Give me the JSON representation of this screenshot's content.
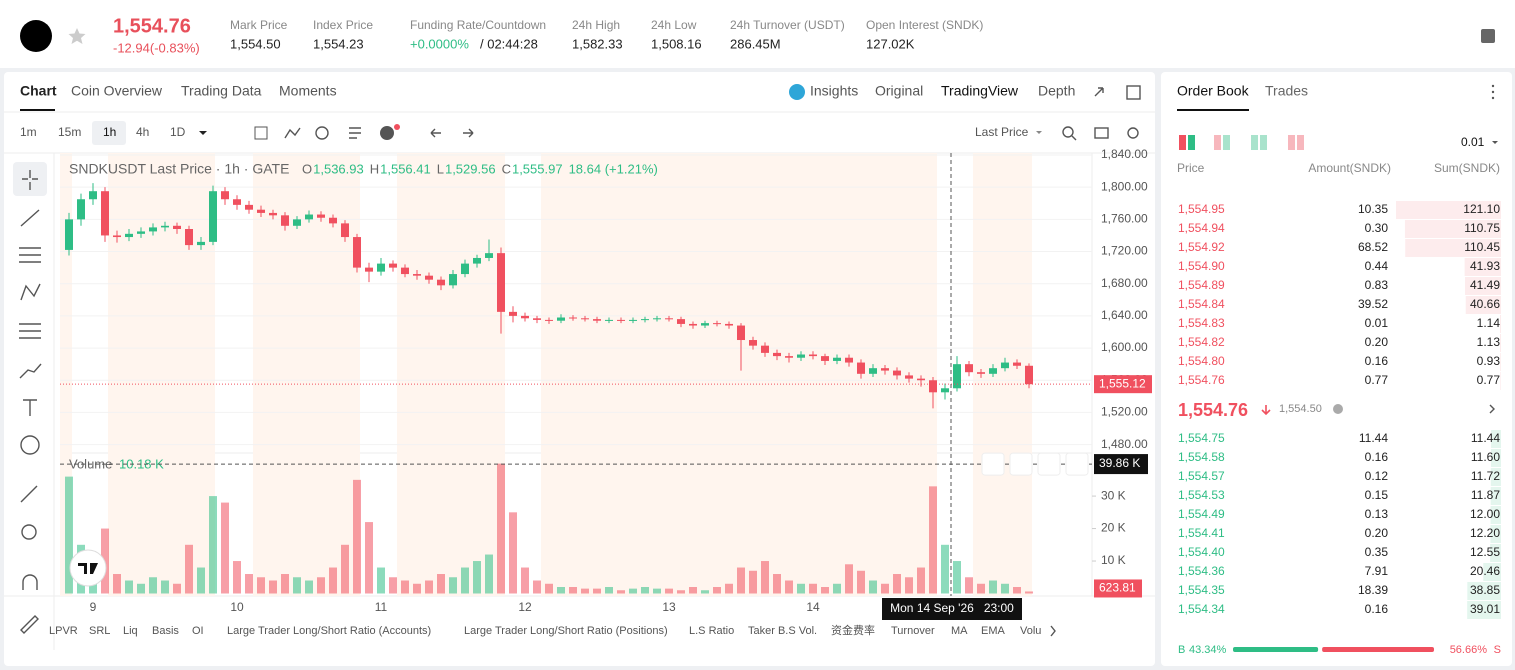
{
  "header": {
    "price": "1,554.76",
    "change": "-12.94(-0.83%)",
    "stats": [
      {
        "label": "Mark Price",
        "value": "1,554.50"
      },
      {
        "label": "Index Price",
        "value": "1,554.23"
      },
      {
        "label": "Funding Rate/Countdown",
        "value": "+0.0000%",
        "countdown": "/ 02:44:28"
      },
      {
        "label": "24h High",
        "value": "1,582.33"
      },
      {
        "label": "24h Low",
        "value": "1,508.16"
      },
      {
        "label": "24h Turnover (USDT)",
        "value": "286.45M"
      },
      {
        "label": "Open Interest (SNDK)",
        "value": "127.02K"
      }
    ]
  },
  "tabs": [
    "Chart",
    "Coin Overview",
    "Trading Data",
    "Moments"
  ],
  "views": [
    "Insights",
    "Original",
    "TradingView",
    "Depth"
  ],
  "intervals": [
    "1m",
    "15m",
    "1h",
    "4h",
    "1D"
  ],
  "price_source": "Last Price",
  "chart_data": {
    "type": "candlestick",
    "legend": {
      "title": "SNDKUSDT Last Price · 1h · GATE",
      "items": [
        {
          "key": "O",
          "value": "1,536.93"
        },
        {
          "key": "H",
          "value": "1,556.41"
        },
        {
          "key": "L",
          "value": "1,529.56"
        },
        {
          "key": "C",
          "value": "1,555.97"
        }
      ],
      "change": "18.64 (+1.21%)"
    },
    "up_color": "#2ebd85",
    "down_color": "#f0505f",
    "categories": [
      null,
      null,
      "9",
      null,
      null,
      null,
      null,
      null,
      null,
      null,
      null,
      null,
      null,
      null,
      "10",
      null,
      null,
      null,
      null,
      null,
      null,
      null,
      null,
      null,
      null,
      null,
      "11",
      null,
      null,
      null,
      null,
      null,
      null,
      null,
      null,
      null,
      null,
      null,
      "12",
      null,
      null,
      null,
      null,
      null,
      null,
      null,
      null,
      null,
      null,
      null,
      "13",
      null,
      null,
      null,
      null,
      null,
      null,
      null,
      null,
      null,
      null,
      null,
      "14",
      null,
      null,
      null,
      null,
      null,
      null,
      null,
      null,
      null,
      null,
      null,
      null,
      null,
      null,
      null,
      null,
      null,
      null
    ],
    "candles": [
      [
        1722,
        1768,
        1715,
        1760
      ],
      [
        1760,
        1792,
        1752,
        1785
      ],
      [
        1785,
        1805,
        1778,
        1795
      ],
      [
        1795,
        1800,
        1732,
        1740
      ],
      [
        1740,
        1746,
        1731,
        1738
      ],
      [
        1738,
        1748,
        1733,
        1742
      ],
      [
        1742,
        1750,
        1737,
        1745
      ],
      [
        1745,
        1755,
        1740,
        1750
      ],
      [
        1750,
        1757,
        1745,
        1752
      ],
      [
        1752,
        1756,
        1742,
        1748
      ],
      [
        1748,
        1752,
        1722,
        1728
      ],
      [
        1728,
        1738,
        1722,
        1732
      ],
      [
        1732,
        1802,
        1728,
        1795
      ],
      [
        1795,
        1800,
        1778,
        1785
      ],
      [
        1785,
        1790,
        1772,
        1778
      ],
      [
        1778,
        1783,
        1767,
        1772
      ],
      [
        1772,
        1777,
        1763,
        1768
      ],
      [
        1768,
        1772,
        1760,
        1765
      ],
      [
        1765,
        1769,
        1746,
        1752
      ],
      [
        1752,
        1764,
        1748,
        1760
      ],
      [
        1760,
        1771,
        1756,
        1766
      ],
      [
        1766,
        1770,
        1757,
        1762
      ],
      [
        1762,
        1766,
        1750,
        1755
      ],
      [
        1755,
        1759,
        1732,
        1738
      ],
      [
        1738,
        1742,
        1694,
        1700
      ],
      [
        1700,
        1706,
        1682,
        1695
      ],
      [
        1695,
        1712,
        1690,
        1705
      ],
      [
        1705,
        1709,
        1695,
        1700
      ],
      [
        1700,
        1704,
        1688,
        1692
      ],
      [
        1692,
        1697,
        1685,
        1690
      ],
      [
        1690,
        1694,
        1680,
        1685
      ],
      [
        1685,
        1689,
        1672,
        1678
      ],
      [
        1678,
        1697,
        1674,
        1692
      ],
      [
        1692,
        1710,
        1688,
        1705
      ],
      [
        1705,
        1716,
        1700,
        1712
      ],
      [
        1712,
        1735,
        1708,
        1718
      ],
      [
        1718,
        1725,
        1618,
        1645
      ],
      [
        1645,
        1652,
        1632,
        1640
      ],
      [
        1640,
        1644,
        1633,
        1637
      ],
      [
        1637,
        1640,
        1631,
        1635
      ],
      [
        1635,
        1638,
        1630,
        1634
      ],
      [
        1634,
        1642,
        1631,
        1638
      ],
      [
        1638,
        1641,
        1634,
        1637
      ],
      [
        1637,
        1640,
        1633,
        1636
      ],
      [
        1636,
        1639,
        1631,
        1634
      ],
      [
        1634,
        1638,
        1631,
        1635
      ],
      [
        1635,
        1638,
        1631,
        1634
      ],
      [
        1634,
        1638,
        1631,
        1635
      ],
      [
        1635,
        1639,
        1632,
        1636
      ],
      [
        1636,
        1640,
        1633,
        1637
      ],
      [
        1637,
        1640,
        1633,
        1636
      ],
      [
        1636,
        1639,
        1626,
        1630
      ],
      [
        1630,
        1633,
        1624,
        1628
      ],
      [
        1628,
        1634,
        1625,
        1631
      ],
      [
        1631,
        1634,
        1627,
        1630
      ],
      [
        1630,
        1633,
        1624,
        1628
      ],
      [
        1628,
        1631,
        1572,
        1610
      ],
      [
        1610,
        1614,
        1598,
        1603
      ],
      [
        1603,
        1607,
        1589,
        1594
      ],
      [
        1594,
        1598,
        1585,
        1590
      ],
      [
        1590,
        1594,
        1582,
        1588
      ],
      [
        1588,
        1596,
        1584,
        1592
      ],
      [
        1592,
        1596,
        1586,
        1590
      ],
      [
        1590,
        1593,
        1579,
        1584
      ],
      [
        1584,
        1592,
        1580,
        1588
      ],
      [
        1588,
        1592,
        1577,
        1582
      ],
      [
        1582,
        1586,
        1562,
        1568
      ],
      [
        1568,
        1580,
        1564,
        1575
      ],
      [
        1575,
        1579,
        1567,
        1572
      ],
      [
        1572,
        1576,
        1561,
        1566
      ],
      [
        1566,
        1570,
        1557,
        1562
      ],
      [
        1562,
        1566,
        1552,
        1560
      ],
      [
        1560,
        1564,
        1525,
        1545
      ],
      [
        1545,
        1556,
        1536,
        1550
      ],
      [
        1550,
        1590,
        1546,
        1580
      ],
      [
        1580,
        1584,
        1565,
        1570
      ],
      [
        1570,
        1574,
        1563,
        1568
      ],
      [
        1568,
        1580,
        1564,
        1575
      ],
      [
        1575,
        1588,
        1571,
        1582
      ],
      [
        1582,
        1586,
        1574,
        1578
      ],
      [
        1578,
        1581,
        1550,
        1555.12
      ]
    ],
    "ylim": [
      1480,
      1840
    ],
    "yticks": [
      {
        "value": 1480,
        "label": "1,480.00"
      },
      {
        "value": 1520,
        "label": "1,520.00"
      },
      {
        "value": 1560,
        "label": "1,560.00"
      },
      {
        "value": 1600,
        "label": "1,600.00"
      },
      {
        "value": 1640,
        "label": "1,640.00"
      },
      {
        "value": 1680,
        "label": "1,680.00"
      },
      {
        "value": 1720,
        "label": "1,720.00"
      },
      {
        "value": 1760,
        "label": "1,760.00"
      },
      {
        "value": 1800,
        "label": "1,800.00"
      },
      {
        "value": 1840,
        "label": "1,840.00"
      }
    ],
    "last_price": {
      "value": 1555.12,
      "label": "1,555.12"
    },
    "volume": {
      "label": "Volume",
      "current": "10.18 K",
      "values": [
        36000,
        15000,
        12000,
        20000,
        6000,
        4000,
        3000,
        5000,
        4000,
        3000,
        15000,
        8000,
        30000,
        28000,
        10000,
        6000,
        5000,
        4000,
        6000,
        5000,
        4000,
        5000,
        8000,
        15000,
        35000,
        22000,
        8000,
        5000,
        4000,
        3000,
        4000,
        6000,
        5000,
        8000,
        10000,
        12000,
        40000,
        25000,
        8000,
        4000,
        3000,
        2000,
        2000,
        1500,
        1500,
        2000,
        1000,
        1500,
        2000,
        1500,
        1500,
        1000,
        2000,
        1000,
        2000,
        3000,
        8000,
        7000,
        10000,
        6000,
        4000,
        3000,
        3000,
        2000,
        3000,
        9000,
        7000,
        4000,
        3000,
        6000,
        5000,
        8000,
        33000,
        15000,
        10000,
        5000,
        3000,
        4000,
        3000,
        2000,
        623.81
      ],
      "ylim": [
        0,
        40500
      ],
      "yticks": [
        {
          "value": 10000,
          "label": "10 K"
        },
        {
          "value": 20000,
          "label": "20 K"
        },
        {
          "value": 30000,
          "label": "30 K"
        }
      ]
    },
    "crosshair": {
      "volume": {
        "value": 39860,
        "label": "39.86 K"
      },
      "time": "Mon 14 Sep '26   23:00"
    }
  },
  "indicators": [
    "LPVR",
    "SRL",
    "Liq",
    "Basis",
    "OI",
    "Large Trader Long/Short Ratio (Accounts)",
    "Large Trader Long/Short Ratio (Positions)",
    "L.S Ratio",
    "Taker B.S Vol.",
    "资金费率",
    "Turnover",
    "MA",
    "EMA",
    "Volu"
  ],
  "order_book": {
    "tabs": [
      "Order Book",
      "Trades"
    ],
    "precision": "0.01",
    "columns": [
      "Price",
      "Amount(SNDK)",
      "Sum(SNDK)"
    ],
    "asks": [
      [
        "1,554.95",
        "10.35",
        "121.10"
      ],
      [
        "1,554.94",
        "0.30",
        "110.75"
      ],
      [
        "1,554.92",
        "68.52",
        "110.45"
      ],
      [
        "1,554.90",
        "0.44",
        "41.93"
      ],
      [
        "1,554.89",
        "0.83",
        "41.49"
      ],
      [
        "1,554.84",
        "39.52",
        "40.66"
      ],
      [
        "1,554.83",
        "0.01",
        "1.14"
      ],
      [
        "1,554.82",
        "0.20",
        "1.13"
      ],
      [
        "1,554.80",
        "0.16",
        "0.93"
      ],
      [
        "1,554.76",
        "0.77",
        "0.77"
      ]
    ],
    "last_price": "1,554.76",
    "mark_price": "1,554.50",
    "bids": [
      [
        "1,554.75",
        "11.44",
        "11.44"
      ],
      [
        "1,554.58",
        "0.16",
        "11.60"
      ],
      [
        "1,554.57",
        "0.12",
        "11.72"
      ],
      [
        "1,554.53",
        "0.15",
        "11.87"
      ],
      [
        "1,554.49",
        "0.13",
        "12.00"
      ],
      [
        "1,554.41",
        "0.20",
        "12.20"
      ],
      [
        "1,554.40",
        "0.35",
        "12.55"
      ],
      [
        "1,554.36",
        "7.91",
        "20.46"
      ],
      [
        "1,554.35",
        "18.39",
        "38.85"
      ],
      [
        "1,554.34",
        "0.16",
        "39.01"
      ]
    ],
    "buy": {
      "key": "B",
      "value": 43.34,
      "label": "43.34%"
    },
    "sell": {
      "key": "S",
      "value": 56.66,
      "label": "56.66%"
    }
  }
}
